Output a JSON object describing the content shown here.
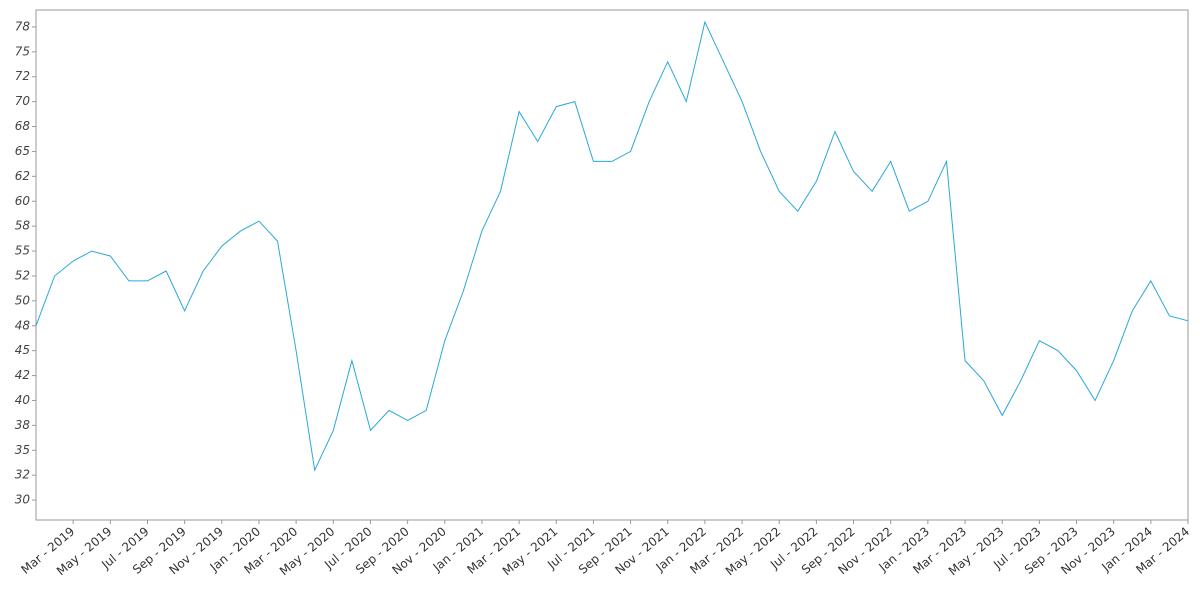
{
  "chart_data": {
    "type": "line",
    "x": [
      "2019-01",
      "2019-02",
      "2019-03",
      "2019-04",
      "2019-05",
      "2019-06",
      "2019-07",
      "2019-08",
      "2019-09",
      "2019-10",
      "2019-11",
      "2019-12",
      "2020-01",
      "2020-02",
      "2020-03",
      "2020-04",
      "2020-05",
      "2020-06",
      "2020-07",
      "2020-08",
      "2020-09",
      "2020-10",
      "2020-11",
      "2020-12",
      "2021-01",
      "2021-02",
      "2021-03",
      "2021-04",
      "2021-05",
      "2021-06",
      "2021-07",
      "2021-08",
      "2021-09",
      "2021-10",
      "2021-11",
      "2021-12",
      "2022-01",
      "2022-02",
      "2022-03",
      "2022-04",
      "2022-05",
      "2022-06",
      "2022-07",
      "2022-08",
      "2022-09",
      "2022-10",
      "2022-11",
      "2022-12",
      "2023-01",
      "2023-02",
      "2023-03",
      "2023-04",
      "2023-05",
      "2023-06",
      "2023-07",
      "2023-08",
      "2023-09",
      "2023-10",
      "2023-11",
      "2023-12",
      "2024-01",
      "2024-02",
      "2024-03"
    ],
    "values": [
      47.5,
      52.5,
      54,
      55,
      54.5,
      52,
      52,
      53,
      49,
      53,
      55.5,
      57,
      58,
      56,
      45,
      33,
      37,
      44,
      37,
      39,
      38,
      39,
      46,
      51,
      57,
      61,
      69,
      66,
      69.5,
      70,
      64,
      64,
      65,
      70,
      74,
      70,
      78,
      74,
      70,
      65,
      61,
      59,
      62,
      67,
      63,
      61,
      64,
      59,
      60,
      64,
      44,
      42,
      38.5,
      42,
      46,
      45,
      43,
      40,
      44,
      49,
      52,
      48.5,
      48
    ],
    "color": "#2aa8d8",
    "xlim": [
      "2019-01",
      "2024-03"
    ],
    "xticks": [
      {
        "value": "2019-03",
        "label": "Mar - 2019"
      },
      {
        "value": "2019-05",
        "label": "May - 2019"
      },
      {
        "value": "2019-07",
        "label": "Jul - 2019"
      },
      {
        "value": "2019-09",
        "label": "Sep - 2019"
      },
      {
        "value": "2019-11",
        "label": "Nov - 2019"
      },
      {
        "value": "2020-01",
        "label": "Jan - 2020"
      },
      {
        "value": "2020-03",
        "label": "Mar - 2020"
      },
      {
        "value": "2020-05",
        "label": "May - 2020"
      },
      {
        "value": "2020-07",
        "label": "Jul - 2020"
      },
      {
        "value": "2020-09",
        "label": "Sep - 2020"
      },
      {
        "value": "2020-11",
        "label": "Nov - 2020"
      },
      {
        "value": "2021-01",
        "label": "Jan - 2021"
      },
      {
        "value": "2021-03",
        "label": "Mar - 2021"
      },
      {
        "value": "2021-05",
        "label": "May - 2021"
      },
      {
        "value": "2021-07",
        "label": "Jul - 2021"
      },
      {
        "value": "2021-09",
        "label": "Sep - 2021"
      },
      {
        "value": "2021-11",
        "label": "Nov - 2021"
      },
      {
        "value": "2022-01",
        "label": "Jan - 2022"
      },
      {
        "value": "2022-03",
        "label": "Mar - 2022"
      },
      {
        "value": "2022-05",
        "label": "May - 2022"
      },
      {
        "value": "2022-07",
        "label": "Jul - 2022"
      },
      {
        "value": "2022-09",
        "label": "Sep - 2022"
      },
      {
        "value": "2022-11",
        "label": "Nov - 2022"
      },
      {
        "value": "2023-01",
        "label": "Jan - 2023"
      },
      {
        "value": "2023-03",
        "label": "Mar - 2023"
      },
      {
        "value": "2023-05",
        "label": "May - 2023"
      },
      {
        "value": "2023-07",
        "label": "Jul - 2023"
      },
      {
        "value": "2023-09",
        "label": "Sep - 2023"
      },
      {
        "value": "2023-11",
        "label": "Nov - 2023"
      },
      {
        "value": "2024-01",
        "label": "Jan - 2024"
      },
      {
        "value": "2024-03",
        "label": "Mar - 2024"
      }
    ],
    "ylim": [
      28,
      79.2
    ],
    "yticks": [
      30,
      {
        "value": 32.5,
        "label": "32"
      },
      35,
      {
        "value": 37.5,
        "label": "38"
      },
      40,
      {
        "value": 42.5,
        "label": "42"
      },
      45,
      {
        "value": 47.5,
        "label": "48"
      },
      50,
      {
        "value": 52.5,
        "label": "52"
      },
      55,
      {
        "value": 57.5,
        "label": "58"
      },
      60,
      {
        "value": 62.5,
        "label": "62"
      },
      65,
      {
        "value": 67.5,
        "label": "68"
      },
      70,
      {
        "value": 72.5,
        "label": "72"
      },
      75,
      {
        "value": 77.5,
        "label": "78"
      }
    ]
  }
}
